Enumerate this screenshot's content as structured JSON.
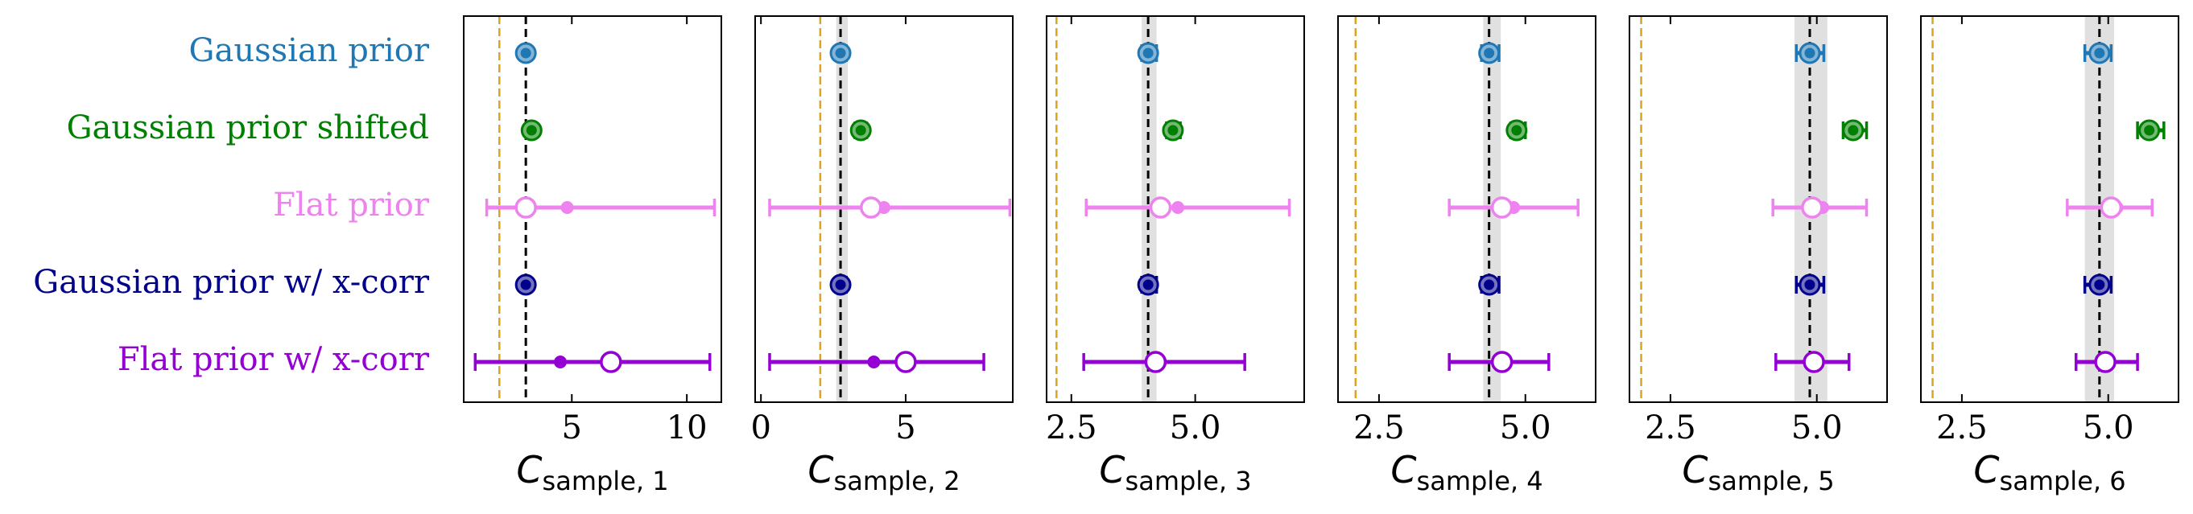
{
  "chart_data": {
    "type": "errorbar-forest",
    "title": "",
    "rows": [
      {
        "label": "Gaussian prior",
        "color": "#1f77b4",
        "style": "filled-light"
      },
      {
        "label": "Gaussian prior shifted",
        "color": "#008000",
        "style": "filled-light"
      },
      {
        "label": "Flat prior",
        "color": "#ee82ee",
        "style": "open"
      },
      {
        "label": "Gaussian prior w/ x-corr",
        "color": "#00008b",
        "style": "filled-light"
      },
      {
        "label": "Flat prior w/ x-corr",
        "color": "#9400d3",
        "style": "open"
      }
    ],
    "panels": [
      {
        "xlabel_main": "C",
        "xlabel_sub": "sample, 1",
        "xlim": [
          0.3,
          11.5
        ],
        "ticks": [
          5,
          10
        ],
        "tick_labels": [
          "5",
          "10"
        ],
        "truth": 3.0,
        "band": null,
        "reference": 1.85,
        "points": [
          {
            "value": 3.0,
            "low": 3.0,
            "high": 3.0,
            "median": null
          },
          {
            "value": 3.25,
            "low": 3.25,
            "high": 3.25,
            "median": null
          },
          {
            "value": 3.0,
            "low": 1.3,
            "high": 11.2,
            "median": 4.8
          },
          {
            "value": 3.0,
            "low": 3.0,
            "high": 3.0,
            "median": null
          },
          {
            "value": 6.7,
            "low": 0.8,
            "high": 11.0,
            "median": 4.5
          }
        ]
      },
      {
        "xlabel_main": "C",
        "xlabel_sub": "sample, 2",
        "xlim": [
          -0.2,
          8.7
        ],
        "ticks": [
          0,
          5
        ],
        "tick_labels": [
          "0",
          "5"
        ],
        "truth": 2.75,
        "band": [
          2.6,
          3.0
        ],
        "reference": 2.05,
        "points": [
          {
            "value": 2.75,
            "low": 2.6,
            "high": 2.95,
            "median": null
          },
          {
            "value": 3.45,
            "low": 3.25,
            "high": 3.65,
            "median": null
          },
          {
            "value": 3.8,
            "low": 0.3,
            "high": 8.6,
            "median": 4.25
          },
          {
            "value": 2.75,
            "low": 2.6,
            "high": 2.95,
            "median": null
          },
          {
            "value": 5.0,
            "low": 0.3,
            "high": 7.7,
            "median": 3.9
          }
        ]
      },
      {
        "xlabel_main": "C",
        "xlabel_sub": "sample, 3",
        "xlim": [
          2.0,
          7.2
        ],
        "ticks": [
          2.5,
          5.0
        ],
        "tick_labels": [
          "2.5",
          "5.0"
        ],
        "truth": 4.05,
        "band": [
          3.92,
          4.22
        ],
        "reference": 2.2,
        "points": [
          {
            "value": 4.05,
            "low": 3.92,
            "high": 4.22,
            "median": null
          },
          {
            "value": 4.55,
            "low": 4.42,
            "high": 4.7,
            "median": null
          },
          {
            "value": 4.3,
            "low": 2.8,
            "high": 6.9,
            "median": 4.65
          },
          {
            "value": 4.05,
            "low": 3.92,
            "high": 4.22,
            "median": null
          },
          {
            "value": 4.2,
            "low": 2.75,
            "high": 6.0,
            "median": 4.3
          }
        ]
      },
      {
        "xlabel_main": "C",
        "xlabel_sub": "sample, 4",
        "xlim": [
          1.8,
          6.2
        ],
        "ticks": [
          2.5,
          5.0
        ],
        "tick_labels": [
          "2.5",
          "5.0"
        ],
        "truth": 4.38,
        "band": [
          4.28,
          4.58
        ],
        "reference": 2.1,
        "points": [
          {
            "value": 4.38,
            "low": 4.25,
            "high": 4.55,
            "median": null
          },
          {
            "value": 4.85,
            "low": 4.75,
            "high": 5.0,
            "median": null
          },
          {
            "value": 4.6,
            "low": 3.7,
            "high": 5.9,
            "median": 4.8
          },
          {
            "value": 4.38,
            "low": 4.25,
            "high": 4.55,
            "median": null
          },
          {
            "value": 4.6,
            "low": 3.7,
            "high": 5.4,
            "median": 4.65
          }
        ]
      },
      {
        "xlabel_main": "C",
        "xlabel_sub": "sample, 5",
        "xlim": [
          1.8,
          6.2
        ],
        "ticks": [
          2.5,
          5.0
        ],
        "tick_labels": [
          "2.5",
          "5.0"
        ],
        "truth": 4.88,
        "band": [
          4.62,
          5.18
        ],
        "reference": 2.0,
        "points": [
          {
            "value": 4.88,
            "low": 4.65,
            "high": 5.12,
            "median": null
          },
          {
            "value": 5.62,
            "low": 5.45,
            "high": 5.85,
            "median": null
          },
          {
            "value": 4.92,
            "low": 4.25,
            "high": 5.85,
            "median": 5.1
          },
          {
            "value": 4.88,
            "low": 4.65,
            "high": 5.12,
            "median": null
          },
          {
            "value": 4.95,
            "low": 4.3,
            "high": 5.55,
            "median": 4.98
          }
        ]
      },
      {
        "xlabel_main": "C",
        "xlabel_sub": "sample, 6",
        "xlim": [
          1.8,
          6.2
        ],
        "ticks": [
          2.5,
          5.0
        ],
        "tick_labels": [
          "2.5",
          "5.0"
        ],
        "truth": 4.85,
        "band": [
          4.6,
          5.1
        ],
        "reference": 2.0,
        "points": [
          {
            "value": 4.85,
            "low": 4.6,
            "high": 5.05,
            "median": null
          },
          {
            "value": 5.7,
            "low": 5.5,
            "high": 5.95,
            "median": null
          },
          {
            "value": 5.05,
            "low": 4.3,
            "high": 5.75,
            "median": 5.15
          },
          {
            "value": 4.85,
            "low": 4.6,
            "high": 5.05,
            "median": null
          },
          {
            "value": 4.95,
            "low": 4.45,
            "high": 5.5,
            "median": 4.97
          }
        ]
      }
    ],
    "colors": {
      "truth_line": "#000000",
      "reference_line": "#daa520",
      "band": "#e0e0e0"
    }
  }
}
